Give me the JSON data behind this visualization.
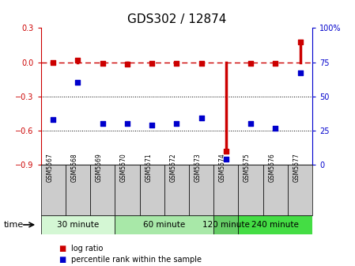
{
  "title": "GDS302 / 12874",
  "samples": [
    "GSM5567",
    "GSM5568",
    "GSM5569",
    "GSM5570",
    "GSM5571",
    "GSM5572",
    "GSM5573",
    "GSM5574",
    "GSM5575",
    "GSM5576",
    "GSM5577"
  ],
  "log_ratio": [
    0.0,
    0.02,
    -0.01,
    -0.02,
    -0.01,
    -0.01,
    -0.01,
    -0.78,
    -0.01,
    -0.01,
    0.18
  ],
  "percentile_rank": [
    33,
    60,
    30,
    30,
    29,
    30,
    34,
    4,
    30,
    27,
    67
  ],
  "red_color": "#cc0000",
  "blue_color": "#0000cc",
  "ylim_left": [
    -0.9,
    0.3
  ],
  "ylim_right": [
    0,
    100
  ],
  "yticks_left": [
    -0.9,
    -0.6,
    -0.3,
    0.0,
    0.3
  ],
  "yticks_right": [
    0,
    25,
    50,
    75,
    100
  ],
  "hline_y": [
    -0.3,
    -0.6
  ],
  "group_defs": [
    {
      "label": "30 minute",
      "start": 0,
      "end": 2,
      "color": "#d4f7d4"
    },
    {
      "label": "60 minute",
      "start": 3,
      "end": 6,
      "color": "#a8e8a8"
    },
    {
      "label": "120 minute",
      "start": 7,
      "end": 7,
      "color": "#66cc66"
    },
    {
      "label": "240 minute",
      "start": 8,
      "end": 10,
      "color": "#44dd44"
    }
  ],
  "sample_box_color": "#cccccc",
  "xlabel": "time",
  "legend_log_ratio": "log ratio",
  "legend_percentile": "percentile rank within the sample",
  "title_fontsize": 11,
  "tick_fontsize": 7,
  "label_fontsize": 7.5
}
